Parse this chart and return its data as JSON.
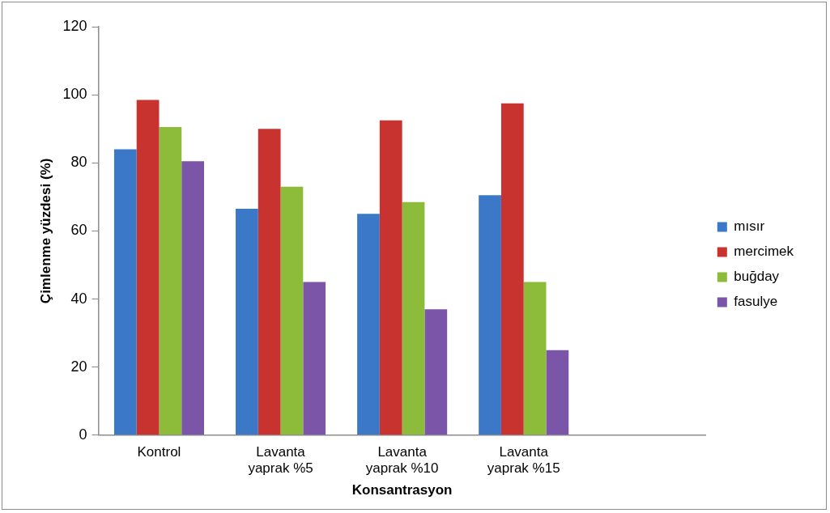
{
  "chart_data": {
    "type": "bar",
    "xlabel": "Konsantrasyon",
    "ylabel": "Çimlenme yüzdesi (%)",
    "categories": [
      "Kontrol",
      "Lavanta yaprak %5",
      "Lavanta yaprak %10",
      "Lavanta yaprak %15",
      null
    ],
    "series": [
      {
        "name": "mısır",
        "color": "#3b78c8",
        "values": [
          84,
          66.5,
          65,
          70.5,
          null
        ]
      },
      {
        "name": "mercimek",
        "color": "#c8322f",
        "values": [
          98.5,
          90,
          92.5,
          97.5,
          null
        ]
      },
      {
        "name": "buğday",
        "color": "#8cbc3a",
        "values": [
          90.5,
          73,
          68.5,
          45,
          null
        ]
      },
      {
        "name": "fasulye",
        "color": "#7a55a8",
        "values": [
          80.5,
          45,
          37,
          25,
          null
        ]
      }
    ],
    "ylim": [
      0,
      120
    ],
    "yticks": [
      0,
      20,
      40,
      60,
      80,
      100,
      120
    ],
    "grid": false,
    "legend": "right"
  }
}
